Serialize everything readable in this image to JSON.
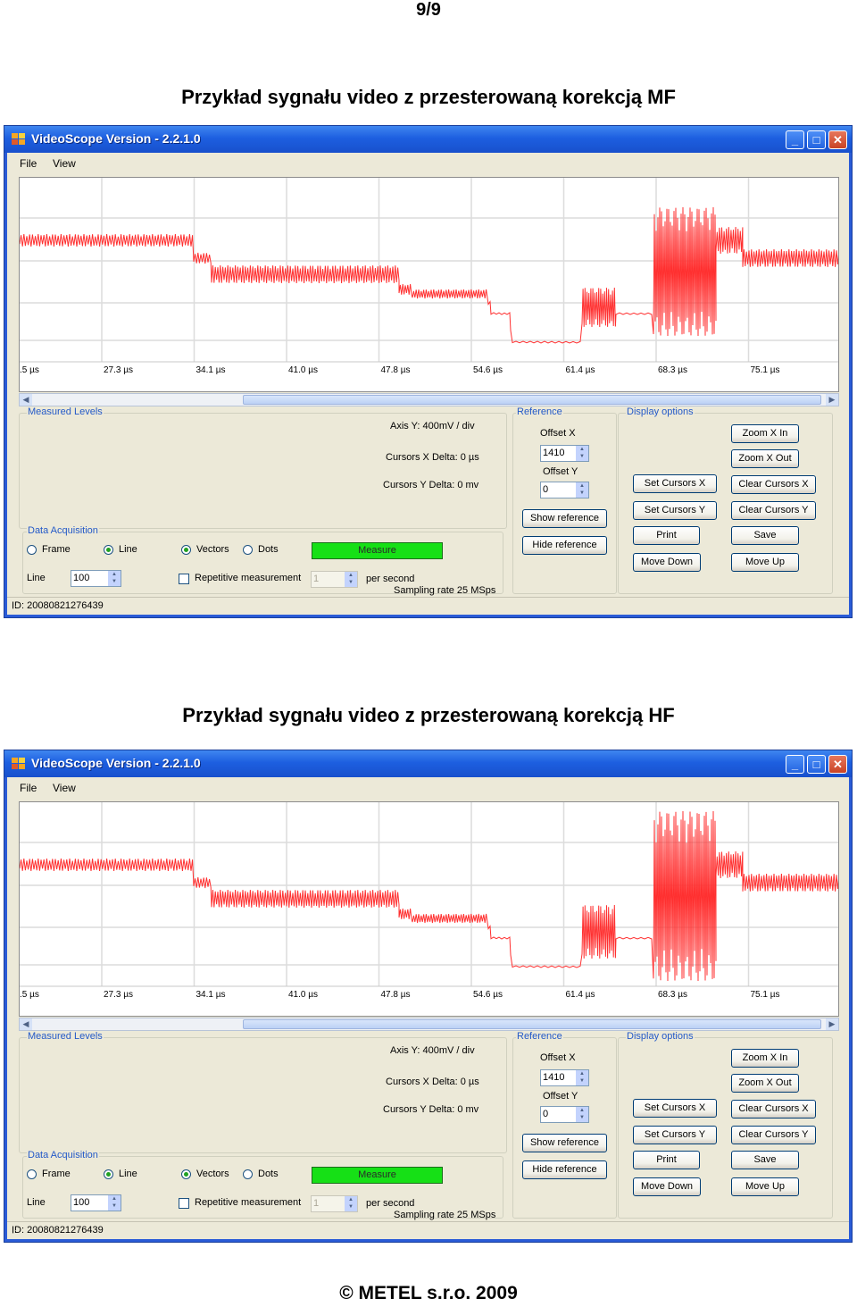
{
  "page_number": "9/9",
  "footer": "© METEL s.r.o. 2009",
  "screenshots": [
    {
      "heading": "Przykład sygnału video z przesterowaną korekcją MF",
      "window_title": "VideoScope Version - 2.2.1.0",
      "menu": [
        "File",
        "View"
      ],
      "time_labels": [
        ".5 µs",
        "27.3 µs",
        "34.1 µs",
        "41.0 µs",
        "47.8 µs",
        "54.6 µs",
        "61.4 µs",
        "68.3 µs",
        "75.1 µs"
      ],
      "measured_levels": {
        "title": "Measured Levels",
        "axis_y": "Axis Y: 400mV / div",
        "cursors_x": "Cursors X Delta: 0 µs",
        "cursors_y": "Cursors Y Delta: 0 mv"
      },
      "data_acquisition": {
        "title": "Data Acquisition",
        "frame": "Frame",
        "line": "Line",
        "vectors": "Vectors",
        "dots": "Dots",
        "measure": "Measure",
        "line_label": "Line",
        "line_value": "100",
        "repetitive": "Repetitive measurement",
        "rate_value": "1",
        "per_second": "per second",
        "sampling": "Sampling rate 25 MSps"
      },
      "reference": {
        "title": "Reference",
        "offset_x_label": "Offset X",
        "offset_x": "1410",
        "offset_y_label": "Offset Y",
        "offset_y": "0",
        "show": "Show reference",
        "hide": "Hide reference"
      },
      "display_options": {
        "title": "Display options",
        "zoom_in": "Zoom X In",
        "zoom_out": "Zoom X Out",
        "set_x": "Set Cursors X",
        "clear_x": "Clear Cursors X",
        "set_y": "Set Cursors Y",
        "clear_y": "Clear Cursors Y",
        "print": "Print",
        "save": "Save",
        "move_down": "Move Down",
        "move_up": "Move Up"
      },
      "status_id": "ID: 20080821276439",
      "trace_color": "#ff3030"
    },
    {
      "heading": "Przykład sygnału video z przesterowaną korekcją HF",
      "window_title": "VideoScope Version - 2.2.1.0",
      "menu": [
        "File",
        "View"
      ],
      "time_labels": [
        ".5 µs",
        "27.3 µs",
        "34.1 µs",
        "41.0 µs",
        "47.8 µs",
        "54.6 µs",
        "61.4 µs",
        "68.3 µs",
        "75.1 µs"
      ],
      "measured_levels": {
        "title": "Measured Levels",
        "axis_y": "Axis Y: 400mV / div",
        "cursors_x": "Cursors X Delta: 0 µs",
        "cursors_y": "Cursors Y Delta: 0 mv"
      },
      "data_acquisition": {
        "title": "Data Acquisition",
        "frame": "Frame",
        "line": "Line",
        "vectors": "Vectors",
        "dots": "Dots",
        "measure": "Measure",
        "line_label": "Line",
        "line_value": "100",
        "repetitive": "Repetitive measurement",
        "rate_value": "1",
        "per_second": "per second",
        "sampling": "Sampling rate 25 MSps"
      },
      "reference": {
        "title": "Reference",
        "offset_x_label": "Offset X",
        "offset_x": "1410",
        "offset_y_label": "Offset Y",
        "offset_y": "0",
        "show": "Show reference",
        "hide": "Hide reference"
      },
      "display_options": {
        "title": "Display options",
        "zoom_in": "Zoom X In",
        "zoom_out": "Zoom X Out",
        "set_x": "Set Cursors X",
        "clear_x": "Clear Cursors X",
        "set_y": "Set Cursors Y",
        "clear_y": "Clear Cursors Y",
        "print": "Print",
        "save": "Save",
        "move_down": "Move Down",
        "move_up": "Move Up"
      },
      "status_id": "ID: 20080821276439",
      "trace_color": "#ff3030"
    }
  ]
}
